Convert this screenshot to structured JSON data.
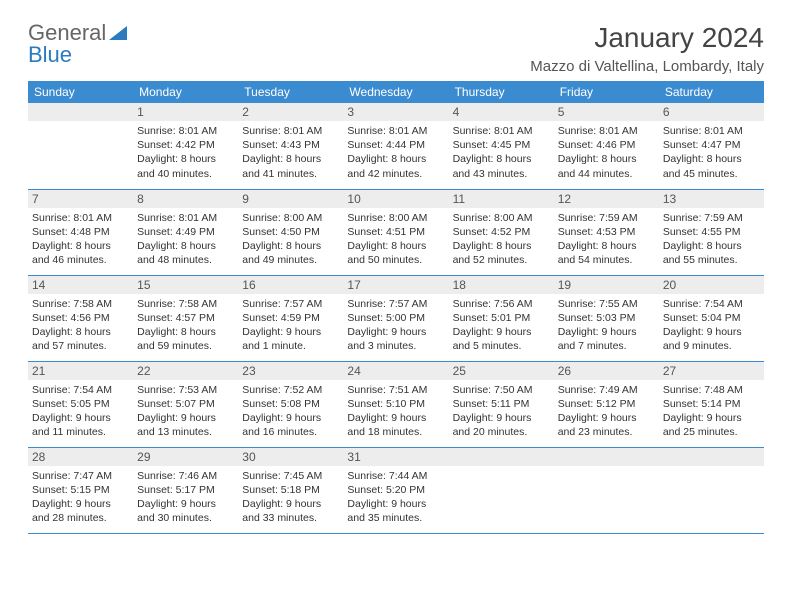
{
  "colors": {
    "header_bg": "#3a8bd0",
    "header_text": "#ffffff",
    "daynum_bg": "#ededed",
    "border": "#3a8bd0",
    "logo_gray": "#666666",
    "logo_blue": "#2a7bbf"
  },
  "logo": {
    "part1": "General",
    "part2": "Blue"
  },
  "title": "January 2024",
  "location": "Mazzo di Valtellina, Lombardy, Italy",
  "weekdays": [
    "Sunday",
    "Monday",
    "Tuesday",
    "Wednesday",
    "Thursday",
    "Friday",
    "Saturday"
  ],
  "weeks": [
    [
      null,
      {
        "n": "1",
        "sr": "Sunrise: 8:01 AM",
        "ss": "Sunset: 4:42 PM",
        "d1": "Daylight: 8 hours",
        "d2": "and 40 minutes."
      },
      {
        "n": "2",
        "sr": "Sunrise: 8:01 AM",
        "ss": "Sunset: 4:43 PM",
        "d1": "Daylight: 8 hours",
        "d2": "and 41 minutes."
      },
      {
        "n": "3",
        "sr": "Sunrise: 8:01 AM",
        "ss": "Sunset: 4:44 PM",
        "d1": "Daylight: 8 hours",
        "d2": "and 42 minutes."
      },
      {
        "n": "4",
        "sr": "Sunrise: 8:01 AM",
        "ss": "Sunset: 4:45 PM",
        "d1": "Daylight: 8 hours",
        "d2": "and 43 minutes."
      },
      {
        "n": "5",
        "sr": "Sunrise: 8:01 AM",
        "ss": "Sunset: 4:46 PM",
        "d1": "Daylight: 8 hours",
        "d2": "and 44 minutes."
      },
      {
        "n": "6",
        "sr": "Sunrise: 8:01 AM",
        "ss": "Sunset: 4:47 PM",
        "d1": "Daylight: 8 hours",
        "d2": "and 45 minutes."
      }
    ],
    [
      {
        "n": "7",
        "sr": "Sunrise: 8:01 AM",
        "ss": "Sunset: 4:48 PM",
        "d1": "Daylight: 8 hours",
        "d2": "and 46 minutes."
      },
      {
        "n": "8",
        "sr": "Sunrise: 8:01 AM",
        "ss": "Sunset: 4:49 PM",
        "d1": "Daylight: 8 hours",
        "d2": "and 48 minutes."
      },
      {
        "n": "9",
        "sr": "Sunrise: 8:00 AM",
        "ss": "Sunset: 4:50 PM",
        "d1": "Daylight: 8 hours",
        "d2": "and 49 minutes."
      },
      {
        "n": "10",
        "sr": "Sunrise: 8:00 AM",
        "ss": "Sunset: 4:51 PM",
        "d1": "Daylight: 8 hours",
        "d2": "and 50 minutes."
      },
      {
        "n": "11",
        "sr": "Sunrise: 8:00 AM",
        "ss": "Sunset: 4:52 PM",
        "d1": "Daylight: 8 hours",
        "d2": "and 52 minutes."
      },
      {
        "n": "12",
        "sr": "Sunrise: 7:59 AM",
        "ss": "Sunset: 4:53 PM",
        "d1": "Daylight: 8 hours",
        "d2": "and 54 minutes."
      },
      {
        "n": "13",
        "sr": "Sunrise: 7:59 AM",
        "ss": "Sunset: 4:55 PM",
        "d1": "Daylight: 8 hours",
        "d2": "and 55 minutes."
      }
    ],
    [
      {
        "n": "14",
        "sr": "Sunrise: 7:58 AM",
        "ss": "Sunset: 4:56 PM",
        "d1": "Daylight: 8 hours",
        "d2": "and 57 minutes."
      },
      {
        "n": "15",
        "sr": "Sunrise: 7:58 AM",
        "ss": "Sunset: 4:57 PM",
        "d1": "Daylight: 8 hours",
        "d2": "and 59 minutes."
      },
      {
        "n": "16",
        "sr": "Sunrise: 7:57 AM",
        "ss": "Sunset: 4:59 PM",
        "d1": "Daylight: 9 hours",
        "d2": "and 1 minute."
      },
      {
        "n": "17",
        "sr": "Sunrise: 7:57 AM",
        "ss": "Sunset: 5:00 PM",
        "d1": "Daylight: 9 hours",
        "d2": "and 3 minutes."
      },
      {
        "n": "18",
        "sr": "Sunrise: 7:56 AM",
        "ss": "Sunset: 5:01 PM",
        "d1": "Daylight: 9 hours",
        "d2": "and 5 minutes."
      },
      {
        "n": "19",
        "sr": "Sunrise: 7:55 AM",
        "ss": "Sunset: 5:03 PM",
        "d1": "Daylight: 9 hours",
        "d2": "and 7 minutes."
      },
      {
        "n": "20",
        "sr": "Sunrise: 7:54 AM",
        "ss": "Sunset: 5:04 PM",
        "d1": "Daylight: 9 hours",
        "d2": "and 9 minutes."
      }
    ],
    [
      {
        "n": "21",
        "sr": "Sunrise: 7:54 AM",
        "ss": "Sunset: 5:05 PM",
        "d1": "Daylight: 9 hours",
        "d2": "and 11 minutes."
      },
      {
        "n": "22",
        "sr": "Sunrise: 7:53 AM",
        "ss": "Sunset: 5:07 PM",
        "d1": "Daylight: 9 hours",
        "d2": "and 13 minutes."
      },
      {
        "n": "23",
        "sr": "Sunrise: 7:52 AM",
        "ss": "Sunset: 5:08 PM",
        "d1": "Daylight: 9 hours",
        "d2": "and 16 minutes."
      },
      {
        "n": "24",
        "sr": "Sunrise: 7:51 AM",
        "ss": "Sunset: 5:10 PM",
        "d1": "Daylight: 9 hours",
        "d2": "and 18 minutes."
      },
      {
        "n": "25",
        "sr": "Sunrise: 7:50 AM",
        "ss": "Sunset: 5:11 PM",
        "d1": "Daylight: 9 hours",
        "d2": "and 20 minutes."
      },
      {
        "n": "26",
        "sr": "Sunrise: 7:49 AM",
        "ss": "Sunset: 5:12 PM",
        "d1": "Daylight: 9 hours",
        "d2": "and 23 minutes."
      },
      {
        "n": "27",
        "sr": "Sunrise: 7:48 AM",
        "ss": "Sunset: 5:14 PM",
        "d1": "Daylight: 9 hours",
        "d2": "and 25 minutes."
      }
    ],
    [
      {
        "n": "28",
        "sr": "Sunrise: 7:47 AM",
        "ss": "Sunset: 5:15 PM",
        "d1": "Daylight: 9 hours",
        "d2": "and 28 minutes."
      },
      {
        "n": "29",
        "sr": "Sunrise: 7:46 AM",
        "ss": "Sunset: 5:17 PM",
        "d1": "Daylight: 9 hours",
        "d2": "and 30 minutes."
      },
      {
        "n": "30",
        "sr": "Sunrise: 7:45 AM",
        "ss": "Sunset: 5:18 PM",
        "d1": "Daylight: 9 hours",
        "d2": "and 33 minutes."
      },
      {
        "n": "31",
        "sr": "Sunrise: 7:44 AM",
        "ss": "Sunset: 5:20 PM",
        "d1": "Daylight: 9 hours",
        "d2": "and 35 minutes."
      },
      null,
      null,
      null
    ]
  ]
}
